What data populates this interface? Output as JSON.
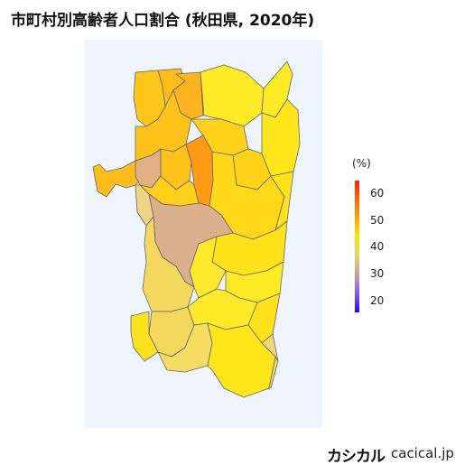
{
  "title": "市町村別高齢者人口割合 (秋田県, 2020年)",
  "legend": {
    "unit": "(%)",
    "ticks": [
      "60",
      "50",
      "40",
      "30",
      "20"
    ]
  },
  "colors": {
    "panel": "#eef5fc",
    "border": "#666666",
    "scale": [
      "#ff2200",
      "#ff8800",
      "#ffe400",
      "#e9cf6b",
      "#c090a8",
      "#2200ff"
    ]
  },
  "branding": {
    "mark": "カシカル",
    "site": "cacical.jp"
  }
}
